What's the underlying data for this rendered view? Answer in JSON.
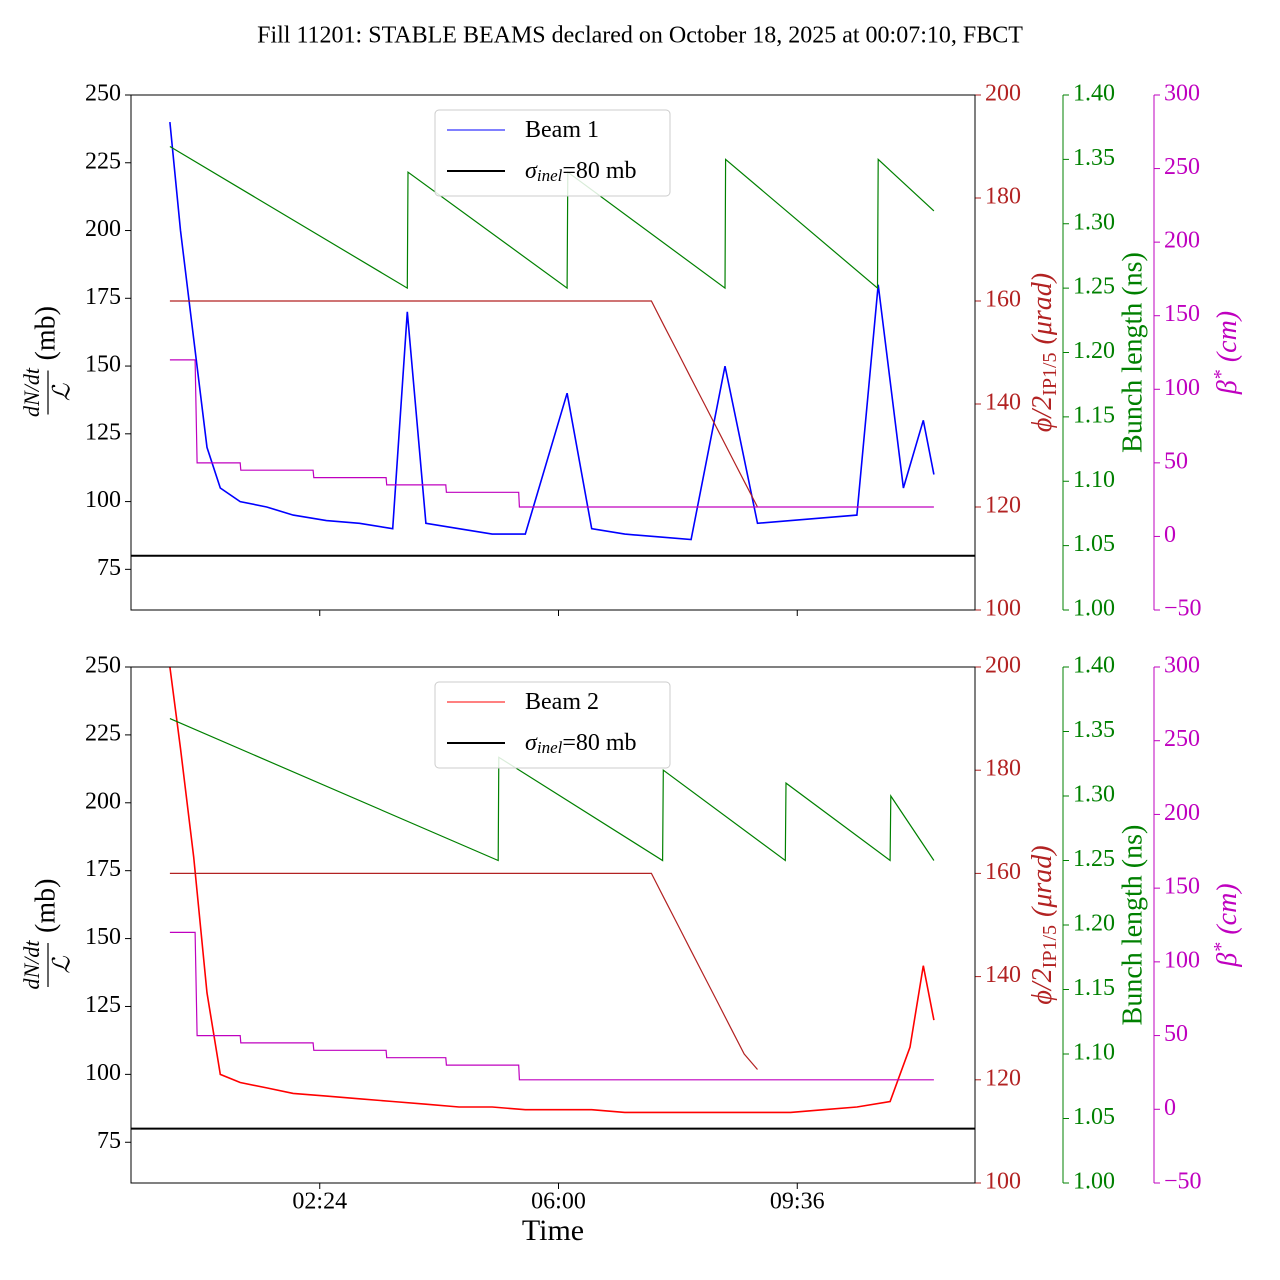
{
  "title": "Fill 11201: STABLE BEAMS declared on October 18, 2025 at 00:07:10, FBCT",
  "chart_data": [
    {
      "type": "line",
      "ylabel_num": "dN/dt",
      "ylabel_den": "ℒ",
      "ylabel_unit": "(mb)",
      "y2label": "ϕ/2",
      "y2label_sub": "IP1/5",
      "y2label_unit": "(μrad)",
      "y3label": "Bunch length (ns)",
      "y4label": "β",
      "y4label_sup": "*",
      "y4label_unit": "(cm)",
      "xlim": [
        -0.446,
        12.28
      ],
      "xticks": [
        2.4,
        6.0,
        9.6
      ],
      "xtick_labels": false,
      "ylim": [
        60,
        250
      ],
      "yticks": [
        75,
        100,
        125,
        150,
        175,
        200,
        225,
        250
      ],
      "y2lim": [
        100,
        200
      ],
      "y2ticks": [
        100,
        120,
        140,
        160,
        180,
        200
      ],
      "y3lim": [
        1.0,
        1.4
      ],
      "y3ticks": [
        {
          "value": 1.0,
          "label": "1.00"
        },
        {
          "value": 1.05,
          "label": "1.05"
        },
        {
          "value": 1.1,
          "label": "1.10"
        },
        {
          "value": 1.15,
          "label": "1.15"
        },
        {
          "value": 1.2,
          "label": "1.20"
        },
        {
          "value": 1.25,
          "label": "1.25"
        },
        {
          "value": 1.3,
          "label": "1.30"
        },
        {
          "value": 1.35,
          "label": "1.35"
        },
        {
          "value": 1.4,
          "label": "1.40"
        }
      ],
      "y4lim": [
        -50,
        300
      ],
      "y4ticks": [
        {
          "value": -50,
          "label": "−50"
        },
        0,
        50,
        100,
        150,
        200,
        250,
        300
      ],
      "legend": "upper center",
      "series": [
        {
          "name": "Beam 1",
          "color": "#0000ff",
          "axis": "y",
          "x": [
            0.14,
            0.3,
            0.5,
            0.7,
            0.9,
            1.2,
            1.6,
            2.0,
            2.5,
            3.0,
            3.5,
            3.72,
            4.0,
            4.5,
            5.0,
            5.5,
            6.13,
            6.5,
            7.0,
            7.5,
            8.0,
            8.51,
            9.0,
            9.5,
            10.0,
            10.5,
            10.82,
            11.2,
            11.5,
            11.66
          ],
          "values": [
            240,
            200,
            160,
            120,
            105,
            100,
            98,
            95,
            93,
            92,
            90,
            170,
            92,
            90,
            88,
            88,
            140,
            90,
            88,
            87,
            86,
            150,
            92,
            93,
            94,
            95,
            180,
            105,
            130,
            110
          ]
        },
        {
          "name": "σ",
          "name_sub": "inel",
          "name_rest": "=80 mb",
          "color": "#000000",
          "axis": "y",
          "value": 80
        },
        {
          "color": "#008000",
          "axis": "y3",
          "x": [
            0.14,
            3.72,
            3.73,
            6.13,
            6.14,
            8.51,
            8.52,
            10.81,
            10.82,
            11.66
          ],
          "values": [
            1.36,
            1.25,
            1.34,
            1.25,
            1.34,
            1.25,
            1.35,
            1.25,
            1.35,
            1.31
          ]
        },
        {
          "color": "#b22222",
          "axis": "y2",
          "x": [
            0.14,
            7.4,
            7.6,
            7.8,
            8.0,
            8.2,
            8.4,
            8.6,
            8.8,
            9.0
          ],
          "values": [
            160,
            160,
            155,
            150,
            145,
            140,
            135,
            130,
            125,
            120
          ]
        },
        {
          "color": "#bf00bf",
          "axis": "y4",
          "x": [
            0.14,
            0.52,
            0.55,
            1.2,
            1.21,
            2.3,
            2.31,
            3.4,
            3.41,
            4.3,
            4.31,
            5.4,
            5.41,
            11.66
          ],
          "values": [
            120,
            120,
            50,
            50,
            45,
            45,
            40,
            40,
            35,
            35,
            30,
            30,
            20,
            20
          ]
        }
      ]
    },
    {
      "type": "line",
      "xlabel": "Time",
      "ylabel_num": "dN/dt",
      "ylabel_den": "ℒ",
      "ylabel_unit": "(mb)",
      "y2label": "ϕ/2",
      "y2label_sub": "IP1/5",
      "y2label_unit": "(μrad)",
      "y3label": "Bunch length (ns)",
      "y4label": "β",
      "y4label_sup": "*",
      "y4label_unit": "(cm)",
      "xlim": [
        -0.446,
        12.28
      ],
      "xticks": [
        {
          "value": 2.4,
          "label": "02:24"
        },
        {
          "value": 6.0,
          "label": "06:00"
        },
        {
          "value": 9.6,
          "label": "09:36"
        }
      ],
      "xtick_labels": true,
      "ylim": [
        60,
        250
      ],
      "yticks": [
        75,
        100,
        125,
        150,
        175,
        200,
        225,
        250
      ],
      "y2lim": [
        100,
        200
      ],
      "y2ticks": [
        100,
        120,
        140,
        160,
        180,
        200
      ],
      "y3lim": [
        1.0,
        1.4
      ],
      "y3ticks": [
        {
          "value": 1.0,
          "label": "1.00"
        },
        {
          "value": 1.05,
          "label": "1.05"
        },
        {
          "value": 1.1,
          "label": "1.10"
        },
        {
          "value": 1.15,
          "label": "1.15"
        },
        {
          "value": 1.2,
          "label": "1.20"
        },
        {
          "value": 1.25,
          "label": "1.25"
        },
        {
          "value": 1.3,
          "label": "1.30"
        },
        {
          "value": 1.35,
          "label": "1.35"
        },
        {
          "value": 1.4,
          "label": "1.40"
        }
      ],
      "y4lim": [
        -50,
        300
      ],
      "y4ticks": [
        {
          "value": -50,
          "label": "−50"
        },
        0,
        50,
        100,
        150,
        200,
        250,
        300
      ],
      "legend": "upper center",
      "series": [
        {
          "name": "Beam 2",
          "color": "#ff0000",
          "axis": "y",
          "x": [
            0.14,
            0.3,
            0.5,
            0.7,
            0.9,
            1.2,
            1.6,
            2.0,
            2.5,
            3.0,
            3.5,
            4.0,
            4.5,
            5.0,
            5.5,
            6.0,
            6.5,
            7.0,
            7.5,
            8.0,
            8.5,
            9.0,
            9.5,
            10.0,
            10.5,
            11.0,
            11.3,
            11.5,
            11.66
          ],
          "values": [
            250,
            220,
            180,
            130,
            100,
            97,
            95,
            93,
            92,
            91,
            90,
            89,
            88,
            88,
            87,
            87,
            87,
            86,
            86,
            86,
            86,
            86,
            86,
            87,
            88,
            90,
            110,
            140,
            120
          ]
        },
        {
          "name": "σ",
          "name_sub": "inel",
          "name_rest": "=80 mb",
          "color": "#000000",
          "axis": "y",
          "value": 80
        },
        {
          "color": "#008000",
          "axis": "y3",
          "x": [
            0.14,
            5.09,
            5.1,
            7.57,
            7.58,
            9.42,
            9.43,
            11.0,
            11.01,
            11.66
          ],
          "values": [
            1.36,
            1.25,
            1.33,
            1.25,
            1.32,
            1.25,
            1.31,
            1.25,
            1.3,
            1.25
          ]
        },
        {
          "color": "#b22222",
          "axis": "y2",
          "x": [
            0.14,
            7.4,
            7.6,
            7.8,
            8.0,
            8.2,
            8.4,
            8.6,
            8.8,
            9.0
          ],
          "values": [
            160,
            160,
            155,
            150,
            145,
            140,
            135,
            130,
            125,
            122
          ]
        },
        {
          "color": "#bf00bf",
          "axis": "y4",
          "x": [
            0.14,
            0.52,
            0.55,
            1.2,
            1.21,
            2.3,
            2.31,
            3.4,
            3.41,
            4.3,
            4.31,
            5.4,
            5.41,
            11.66
          ],
          "values": [
            120,
            120,
            50,
            50,
            45,
            45,
            40,
            40,
            35,
            35,
            30,
            30,
            20,
            20
          ]
        }
      ]
    }
  ]
}
